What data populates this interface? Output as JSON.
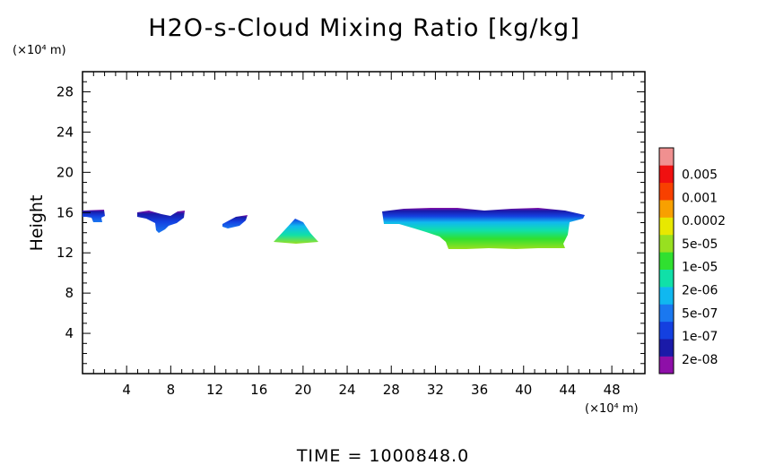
{
  "chart_data": {
    "type": "heatmap",
    "title": "H2O-s-Cloud Mixing Ratio [kg/kg]",
    "ylabel": "Height",
    "y_unit": "(×10⁴ m)",
    "x_unit": "(×10⁴ m)",
    "xlim": [
      0,
      51
    ],
    "ylim": [
      0,
      30
    ],
    "x_ticks": [
      "4",
      "8",
      "12",
      "16",
      "20",
      "24",
      "28",
      "32",
      "36",
      "40",
      "44",
      "48"
    ],
    "y_ticks": [
      "4",
      "8",
      "12",
      "16",
      "20",
      "24",
      "28"
    ],
    "footer": "TIME = 1000848.0",
    "colorbar": {
      "colors": [
        "#8e0fa8",
        "#1a1aa8",
        "#1440e0",
        "#1a78f0",
        "#10b8f0",
        "#10e0a8",
        "#30e030",
        "#98e020",
        "#e8e800",
        "#f8a000",
        "#f84000",
        "#f01010",
        "#f09090"
      ],
      "labels": [
        "2e-08",
        "1e-07",
        "5e-07",
        "2e-06",
        "1e-05",
        "5e-05",
        "0.0002",
        "0.001",
        "0.005"
      ]
    },
    "regions": [
      {
        "x": [
          0,
          2.2
        ],
        "y": [
          15,
          16.4
        ],
        "level": "1e-07"
      },
      {
        "x": [
          5,
          9.2
        ],
        "y": [
          14,
          16.3
        ],
        "level": "1e-07"
      },
      {
        "x": [
          12.6,
          15
        ],
        "y": [
          14.6,
          15.8
        ],
        "level": "1e-07"
      },
      {
        "x": [
          17.8,
          21.3
        ],
        "y": [
          13,
          15.4
        ],
        "level": "1e-05"
      },
      {
        "x": [
          27,
          45.3
        ],
        "y": [
          12.4,
          16.6
        ],
        "level": "5e-05"
      }
    ]
  }
}
